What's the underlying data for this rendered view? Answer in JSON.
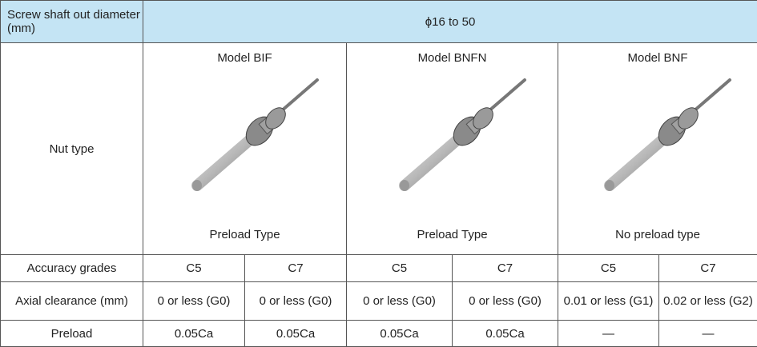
{
  "header": {
    "label": "Screw shaft out diameter (mm)",
    "value": "ϕ16 to 50"
  },
  "nut_type": {
    "label": "Nut type",
    "models": [
      {
        "name": "Model BIF",
        "caption": "Preload Type"
      },
      {
        "name": "Model BNFN",
        "caption": "Preload Type"
      },
      {
        "name": "Model BNF",
        "caption": "No preload type"
      }
    ]
  },
  "rows": [
    {
      "label": "Accuracy grades",
      "values": [
        "C5",
        "C7",
        "C5",
        "C7",
        "C5",
        "C7"
      ]
    },
    {
      "label": "Axial clearance (mm)",
      "values": [
        "0 or less (G0)",
        "0 or less (G0)",
        "0 or less (G0)",
        "0 or less (G0)",
        "0.01 or less (G1)",
        "0.02 or less (G2)"
      ]
    },
    {
      "label": "Preload",
      "values": [
        "0.05Ca",
        "0.05Ca",
        "0.05Ca",
        "0.05Ca",
        "—",
        "—"
      ]
    }
  ]
}
